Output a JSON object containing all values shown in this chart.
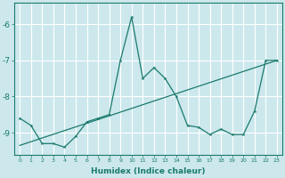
{
  "xlabel": "Humidex (Indice chaleur)",
  "background_color": "#cce8ec",
  "grid_color": "#ffffff",
  "line_color": "#1a7a6e",
  "xlim": [
    -0.5,
    23.5
  ],
  "ylim": [
    -9.6,
    -5.4
  ],
  "yticks": [
    -9,
    -8,
    -7,
    -6
  ],
  "xticks": [
    0,
    1,
    2,
    3,
    4,
    5,
    6,
    7,
    8,
    9,
    10,
    11,
    12,
    13,
    14,
    15,
    16,
    17,
    18,
    19,
    20,
    21,
    22,
    23
  ],
  "series1_x": [
    0,
    1,
    2,
    3,
    4,
    5,
    6,
    7,
    8,
    9,
    10,
    11,
    12,
    13,
    14,
    15,
    16,
    17,
    18,
    19,
    20,
    21,
    22,
    23
  ],
  "series1_y": [
    -8.6,
    -8.8,
    -9.3,
    -9.3,
    -9.4,
    -9.1,
    -8.7,
    -8.6,
    -8.5,
    -7.0,
    -5.8,
    -7.5,
    -7.2,
    -7.5,
    -8.0,
    -8.8,
    -8.85,
    -9.05,
    -8.9,
    -9.05,
    -9.05,
    -8.4,
    -7.0,
    -7.0
  ],
  "series2_x": [
    0,
    23
  ],
  "series2_y": [
    -9.35,
    -7.0
  ]
}
